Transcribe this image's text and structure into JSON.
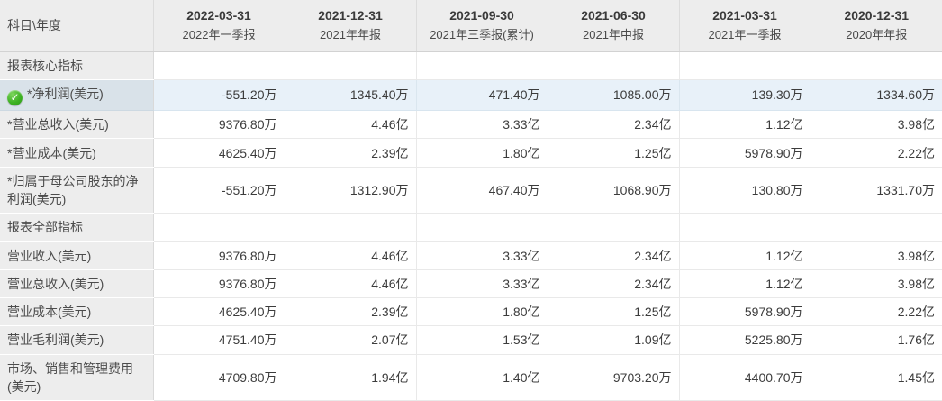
{
  "table": {
    "corner_label": "科目\\年度",
    "check_icon_glyph": "✓",
    "colors": {
      "header_bg": "#ededed",
      "label_bg": "#ededed",
      "highlight_label_bg": "#d9e2e9",
      "highlight_cell_bg": "#e8f1f9",
      "check_green": "#3fb224",
      "text": "#3c3c3c"
    },
    "columns": [
      {
        "date": "2022-03-31",
        "period": "2022年一季报"
      },
      {
        "date": "2021-12-31",
        "period": "2021年年报"
      },
      {
        "date": "2021-09-30",
        "period": "2021年三季报(累计)"
      },
      {
        "date": "2021-06-30",
        "period": "2021年中报"
      },
      {
        "date": "2021-03-31",
        "period": "2021年一季报"
      },
      {
        "date": "2020-12-31",
        "period": "2020年年报"
      }
    ],
    "rows": [
      {
        "type": "section",
        "label": "报表核心指标"
      },
      {
        "type": "data",
        "label": "*净利润(美元)",
        "icon": "check",
        "highlight": true,
        "values": [
          "-551.20万",
          "1345.40万",
          "471.40万",
          "1085.00万",
          "139.30万",
          "1334.60万"
        ]
      },
      {
        "type": "data",
        "label": "*营业总收入(美元)",
        "values": [
          "9376.80万",
          "4.46亿",
          "3.33亿",
          "2.34亿",
          "1.12亿",
          "3.98亿"
        ]
      },
      {
        "type": "data",
        "label": "*营业成本(美元)",
        "values": [
          "4625.40万",
          "2.39亿",
          "1.80亿",
          "1.25亿",
          "5978.90万",
          "2.22亿"
        ]
      },
      {
        "type": "data",
        "label": "*归属于母公司股东的净利润(美元)",
        "values": [
          "-551.20万",
          "1312.90万",
          "467.40万",
          "1068.90万",
          "130.80万",
          "1331.70万"
        ]
      },
      {
        "type": "section",
        "label": "报表全部指标"
      },
      {
        "type": "data",
        "label": "营业收入(美元)",
        "values": [
          "9376.80万",
          "4.46亿",
          "3.33亿",
          "2.34亿",
          "1.12亿",
          "3.98亿"
        ]
      },
      {
        "type": "data",
        "label": "营业总收入(美元)",
        "values": [
          "9376.80万",
          "4.46亿",
          "3.33亿",
          "2.34亿",
          "1.12亿",
          "3.98亿"
        ]
      },
      {
        "type": "data",
        "label": "营业成本(美元)",
        "values": [
          "4625.40万",
          "2.39亿",
          "1.80亿",
          "1.25亿",
          "5978.90万",
          "2.22亿"
        ]
      },
      {
        "type": "data",
        "label": "营业毛利润(美元)",
        "values": [
          "4751.40万",
          "2.07亿",
          "1.53亿",
          "1.09亿",
          "5225.80万",
          "1.76亿"
        ]
      },
      {
        "type": "data",
        "label": "市场、销售和管理费用(美元)",
        "values": [
          "4709.80万",
          "1.94亿",
          "1.40亿",
          "9703.20万",
          "4400.70万",
          "1.45亿"
        ]
      }
    ]
  }
}
